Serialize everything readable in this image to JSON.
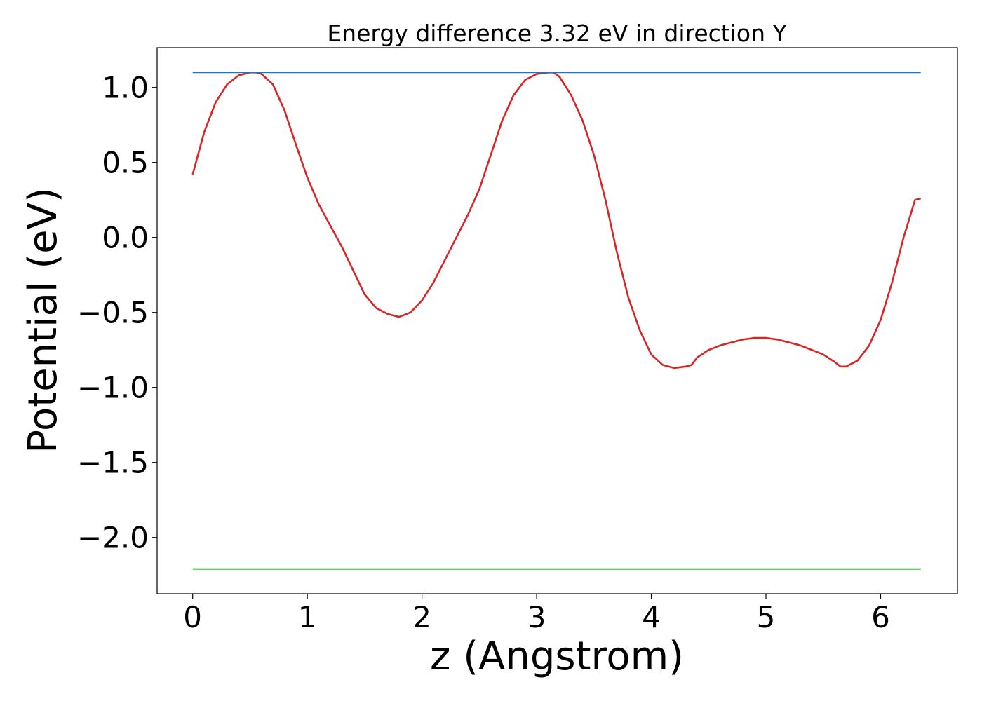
{
  "chart_data": {
    "type": "line",
    "title": "Energy difference 3.32 eV in direction Y",
    "xlabel": "z (Angstrom)",
    "ylabel": "Potential (eV)",
    "xlim": [
      -0.31,
      6.67
    ],
    "ylim": [
      -2.375,
      1.265
    ],
    "xticks": [
      0,
      1,
      2,
      3,
      4,
      5,
      6
    ],
    "xtick_labels": [
      "0",
      "1",
      "2",
      "3",
      "4",
      "5",
      "6"
    ],
    "yticks": [
      1.0,
      0.5,
      0.0,
      -0.5,
      -1.0,
      -1.5,
      -2.0
    ],
    "ytick_labels": [
      "1.0",
      "0.5",
      "0.0",
      "−0.5",
      "−1.0",
      "−1.5",
      "−2.0"
    ],
    "grid": false,
    "legend": "none",
    "series": [
      {
        "color": "#d62728",
        "x": [
          0.0,
          0.1,
          0.2,
          0.3,
          0.4,
          0.5,
          0.55,
          0.6,
          0.7,
          0.8,
          0.9,
          1.0,
          1.1,
          1.2,
          1.3,
          1.4,
          1.5,
          1.6,
          1.7,
          1.8,
          1.9,
          2.0,
          2.1,
          2.2,
          2.3,
          2.4,
          2.5,
          2.6,
          2.7,
          2.8,
          2.9,
          3.0,
          3.1,
          3.15,
          3.2,
          3.3,
          3.4,
          3.5,
          3.6,
          3.7,
          3.8,
          3.9,
          4.0,
          4.1,
          4.2,
          4.3,
          4.35,
          4.4,
          4.5,
          4.6,
          4.7,
          4.8,
          4.9,
          5.0,
          5.1,
          5.2,
          5.3,
          5.4,
          5.5,
          5.6,
          5.65,
          5.7,
          5.8,
          5.9,
          6.0,
          6.1,
          6.2,
          6.3,
          6.35
        ],
        "y": [
          0.42,
          0.7,
          0.9,
          1.02,
          1.08,
          1.1,
          1.1,
          1.09,
          1.02,
          0.85,
          0.62,
          0.4,
          0.22,
          0.08,
          -0.06,
          -0.22,
          -0.38,
          -0.47,
          -0.51,
          -0.53,
          -0.5,
          -0.42,
          -0.3,
          -0.15,
          0.0,
          0.15,
          0.32,
          0.55,
          0.78,
          0.95,
          1.05,
          1.09,
          1.1,
          1.1,
          1.07,
          0.95,
          0.78,
          0.55,
          0.25,
          -0.1,
          -0.4,
          -0.62,
          -0.78,
          -0.85,
          -0.87,
          -0.86,
          -0.85,
          -0.8,
          -0.75,
          -0.72,
          -0.7,
          -0.68,
          -0.67,
          -0.67,
          -0.68,
          -0.7,
          -0.72,
          -0.75,
          -0.78,
          -0.83,
          -0.86,
          -0.86,
          -0.82,
          -0.72,
          -0.55,
          -0.3,
          0.0,
          0.25,
          0.26
        ]
      },
      {
        "color": "#1f77b4",
        "x": [
          0.0,
          6.35
        ],
        "y": [
          1.1,
          1.1
        ]
      },
      {
        "color": "#2ca02c",
        "x": [
          0.0,
          6.35
        ],
        "y": [
          -2.21,
          -2.21
        ]
      }
    ]
  }
}
